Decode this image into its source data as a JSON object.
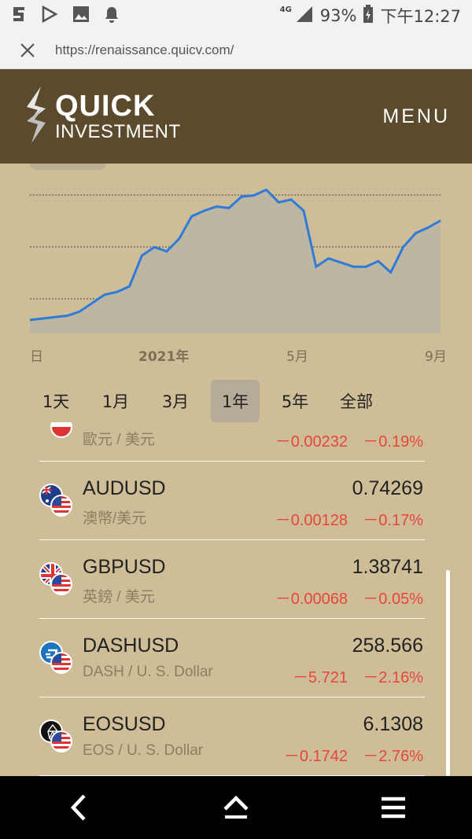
{
  "status_bar": {
    "network": "4G",
    "battery": "93%",
    "time": "下午12:27"
  },
  "browser": {
    "url": "https://renaissance.quicv.com/"
  },
  "header": {
    "logo_top": "QUICK",
    "logo_bottom": "INVESTMENT",
    "menu_label": "MENU"
  },
  "chart_data": {
    "type": "area",
    "x_tick_labels": [
      "日",
      "2021年",
      "5月",
      "9月"
    ],
    "series": [
      {
        "values": [
          0.04,
          0.05,
          0.06,
          0.07,
          0.1,
          0.16,
          0.22,
          0.24,
          0.28,
          0.5,
          0.56,
          0.53,
          0.62,
          0.78,
          0.82,
          0.85,
          0.84,
          0.92,
          0.93,
          0.97,
          0.88,
          0.9,
          0.82,
          0.42,
          0.48,
          0.45,
          0.42,
          0.42,
          0.46,
          0.38,
          0.56,
          0.66,
          0.7,
          0.75
        ]
      }
    ],
    "gridlines": 3,
    "line_color": "#2e7bd8",
    "fill_color": "#bdb6a3"
  },
  "periods": {
    "items": [
      {
        "label": "1天"
      },
      {
        "label": "1月"
      },
      {
        "label": "3月"
      },
      {
        "label": "1年",
        "active": true
      },
      {
        "label": "5年"
      },
      {
        "label": "全部"
      }
    ]
  },
  "quotes": {
    "items": [
      {
        "symbol": "",
        "name": "歐元 / 美元",
        "price": "",
        "change": "－0.00232",
        "percent": "－0.19%",
        "icon": "eur-flag-icon"
      },
      {
        "symbol": "AUDUSD",
        "name": "澳幣/美元",
        "price": "0.74269",
        "change": "－0.00128",
        "percent": "－0.17%",
        "icon": "aud-flag-icon"
      },
      {
        "symbol": "GBPUSD",
        "name": "英鎊 / 美元",
        "price": "1.38741",
        "change": "－0.00068",
        "percent": "－0.05%",
        "icon": "gbp-flag-icon"
      },
      {
        "symbol": "DASHUSD",
        "name": "DASH / U. S. Dollar",
        "price": "258.566",
        "change": "－5.721",
        "percent": "－2.16%",
        "icon": "dash-coin-icon"
      },
      {
        "symbol": "EOSUSD",
        "name": "EOS / U. S. Dollar",
        "price": "6.1308",
        "change": "－0.1742",
        "percent": "－2.76%",
        "icon": "eos-coin-icon"
      }
    ]
  },
  "colors": {
    "header_bg": "#5b4a2b",
    "page_bg": "#cfbd97",
    "negative": "#e4473d",
    "line": "#2e7bd8"
  }
}
